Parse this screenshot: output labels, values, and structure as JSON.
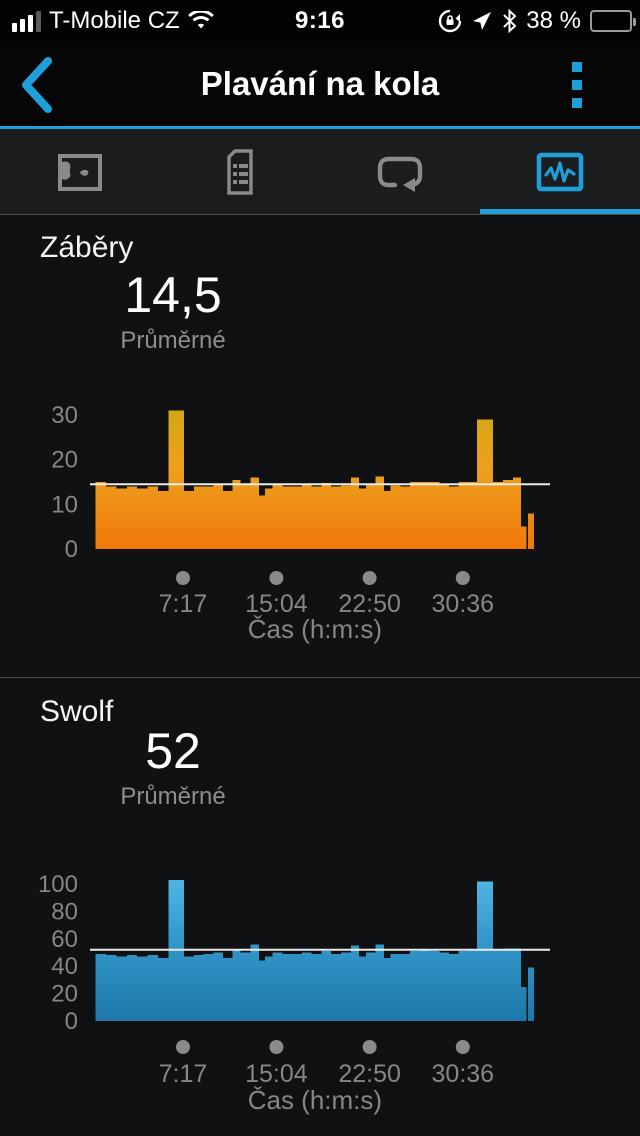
{
  "status_bar": {
    "carrier": "T-Mobile CZ",
    "time": "9:16",
    "battery_label": "38 %",
    "battery_percent": 38,
    "icons": [
      "cell-signal",
      "wifi",
      "rotation-lock",
      "location-arrow",
      "bluetooth",
      "battery"
    ]
  },
  "header": {
    "title": "Plavání na kola"
  },
  "tabs": [
    {
      "id": "map",
      "icon": "map-icon",
      "active": false
    },
    {
      "id": "details",
      "icon": "document-list-icon",
      "active": false
    },
    {
      "id": "laps",
      "icon": "loop-icon",
      "active": false
    },
    {
      "id": "charts",
      "icon": "chart-icon",
      "active": true
    }
  ],
  "colors": {
    "accent_blue": "#1f9fd9",
    "inactive_icon": "#8a8a8c",
    "axis_text": "#868688",
    "avg_line": "#ececec",
    "strokes_gradient": [
      "#cfa714",
      "#eda11e",
      "#f0780a"
    ],
    "swolf_gradient": [
      "#55b9e6",
      "#3498cc",
      "#1d77a8"
    ]
  },
  "chart_data": {
    "type": "bar",
    "note": "two stacked bar charts sharing the same lap timeline (x = cumulative time in seconds)",
    "xlabel": "Čas (h:m:s)",
    "x_ticks": [
      {
        "seconds": 437,
        "label": "7:17"
      },
      {
        "seconds": 904,
        "label": "15:04"
      },
      {
        "seconds": 1370,
        "label": "22:50"
      },
      {
        "seconds": 1836,
        "label": "30:36"
      }
    ],
    "total_seconds": 2193,
    "laps_format": [
      "duration_seconds",
      "strokes",
      "swolf"
    ],
    "laps": [
      [
        52,
        15,
        49
      ],
      [
        52,
        14,
        48
      ],
      [
        52,
        13.5,
        47
      ],
      [
        52,
        14,
        48
      ],
      [
        52,
        13.5,
        47
      ],
      [
        52,
        14,
        48
      ],
      [
        52,
        13,
        46
      ],
      [
        78,
        31,
        103
      ],
      [
        50,
        13,
        47
      ],
      [
        48,
        14,
        48
      ],
      [
        50,
        14,
        49
      ],
      [
        48,
        14.5,
        50
      ],
      [
        46,
        13,
        46
      ],
      [
        40,
        15.5,
        52
      ],
      [
        50,
        14.5,
        50
      ],
      [
        44,
        16,
        56
      ],
      [
        30,
        12,
        44
      ],
      [
        36,
        13.5,
        47
      ],
      [
        50,
        14.5,
        50
      ],
      [
        48,
        14,
        49
      ],
      [
        50,
        14,
        49
      ],
      [
        48,
        14.5,
        50
      ],
      [
        50,
        14,
        49
      ],
      [
        48,
        14.8,
        51
      ],
      [
        50,
        14,
        49
      ],
      [
        48,
        14.2,
        50
      ],
      [
        42,
        16,
        55
      ],
      [
        34,
        13.5,
        47
      ],
      [
        48,
        14.5,
        50
      ],
      [
        42,
        16.2,
        56
      ],
      [
        32,
        13,
        46
      ],
      [
        50,
        14.2,
        49
      ],
      [
        48,
        14,
        49
      ],
      [
        50,
        15,
        51
      ],
      [
        48,
        15,
        52
      ],
      [
        50,
        15,
        51
      ],
      [
        48,
        14.5,
        50
      ],
      [
        46,
        14,
        49
      ],
      [
        48,
        15,
        51
      ],
      [
        45,
        15,
        52
      ],
      [
        80,
        29,
        102
      ],
      [
        50,
        15,
        52
      ],
      [
        50,
        15.5,
        53
      ],
      [
        40,
        16,
        53
      ],
      [
        28,
        5,
        25
      ],
      [
        8,
        null,
        null
      ],
      [
        30,
        8,
        39
      ]
    ],
    "charts": [
      {
        "metric": "strokes",
        "title": "Záběry",
        "avg_display": "14,5",
        "avg": 14.5,
        "avg_label": "Průměrné",
        "y_ticks": [
          0,
          10,
          20,
          30
        ],
        "ylim": [
          0,
          31
        ],
        "value_index": 1
      },
      {
        "metric": "swolf",
        "title": "Swolf",
        "avg_display": "52",
        "avg": 52,
        "avg_label": "Průměrné",
        "y_ticks": [
          0,
          20,
          40,
          60,
          80,
          100
        ],
        "ylim": [
          0,
          103
        ],
        "value_index": 2
      }
    ]
  }
}
